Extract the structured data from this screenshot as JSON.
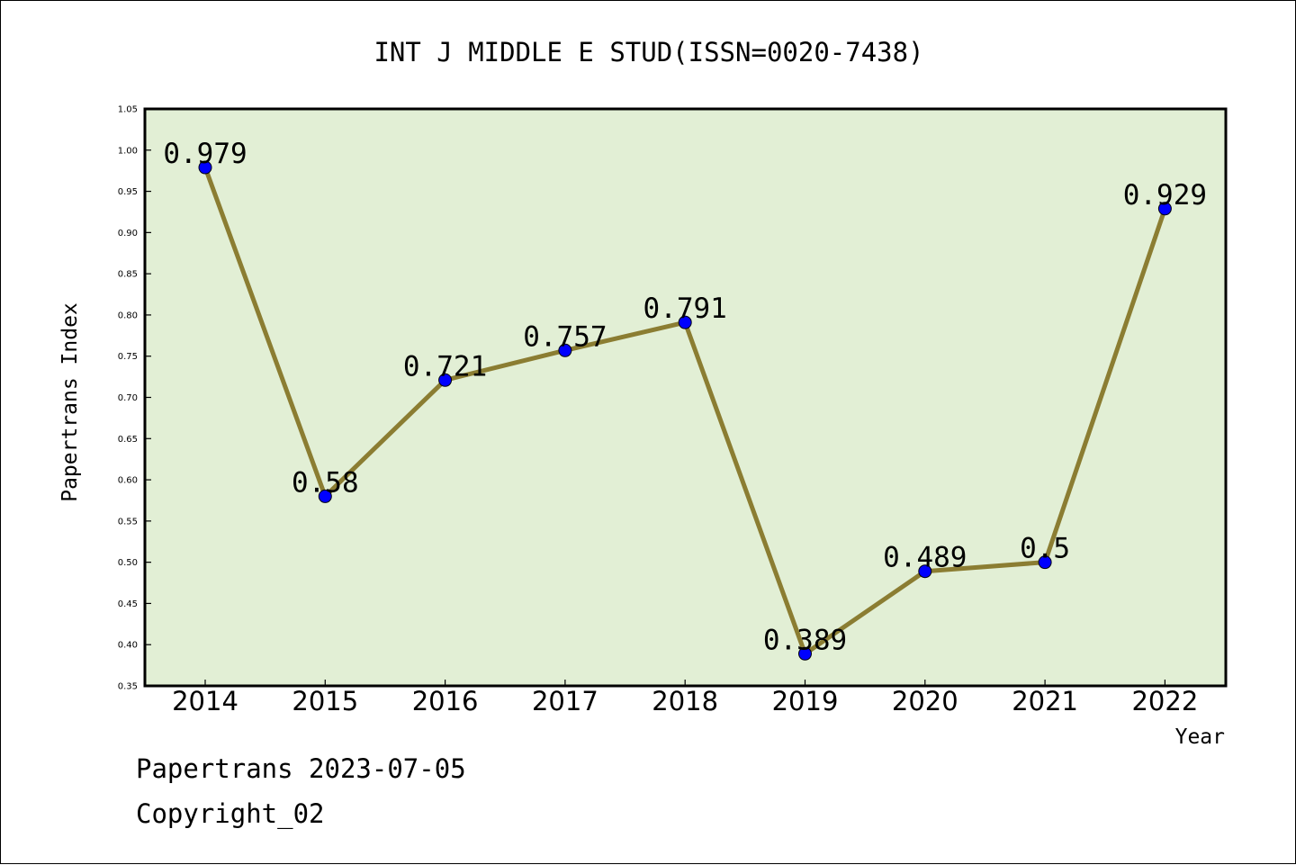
{
  "chart_data": {
    "type": "line",
    "title": "INT J MIDDLE E STUD(ISSN=0020-7438)",
    "xlabel": "Year",
    "ylabel": "Papertrans Index",
    "categories": [
      "2014",
      "2015",
      "2016",
      "2017",
      "2018",
      "2019",
      "2020",
      "2021",
      "2022"
    ],
    "series": [
      {
        "values": [
          0.979,
          0.58,
          0.721,
          0.757,
          0.791,
          0.389,
          0.489,
          0.5,
          0.929
        ],
        "labels": [
          "0.979",
          "0.58",
          "0.721",
          "0.757",
          "0.791",
          "0.389",
          "0.489",
          "0.5",
          "0.929"
        ]
      }
    ],
    "ylim": [
      0.35,
      1.05
    ],
    "yticks": [
      "0.35",
      "0.40",
      "0.45",
      "0.50",
      "0.55",
      "0.60",
      "0.65",
      "0.70",
      "0.75",
      "0.80",
      "0.85",
      "0.90",
      "0.95",
      "1.00",
      "1.05"
    ],
    "grid": false,
    "colors": {
      "plot_background": "#e2efd5",
      "line": "#8b7d32",
      "marker": "#0000ff"
    }
  },
  "footer": {
    "line1": "Papertrans 2023-07-05",
    "line2": "Copyright_02"
  }
}
